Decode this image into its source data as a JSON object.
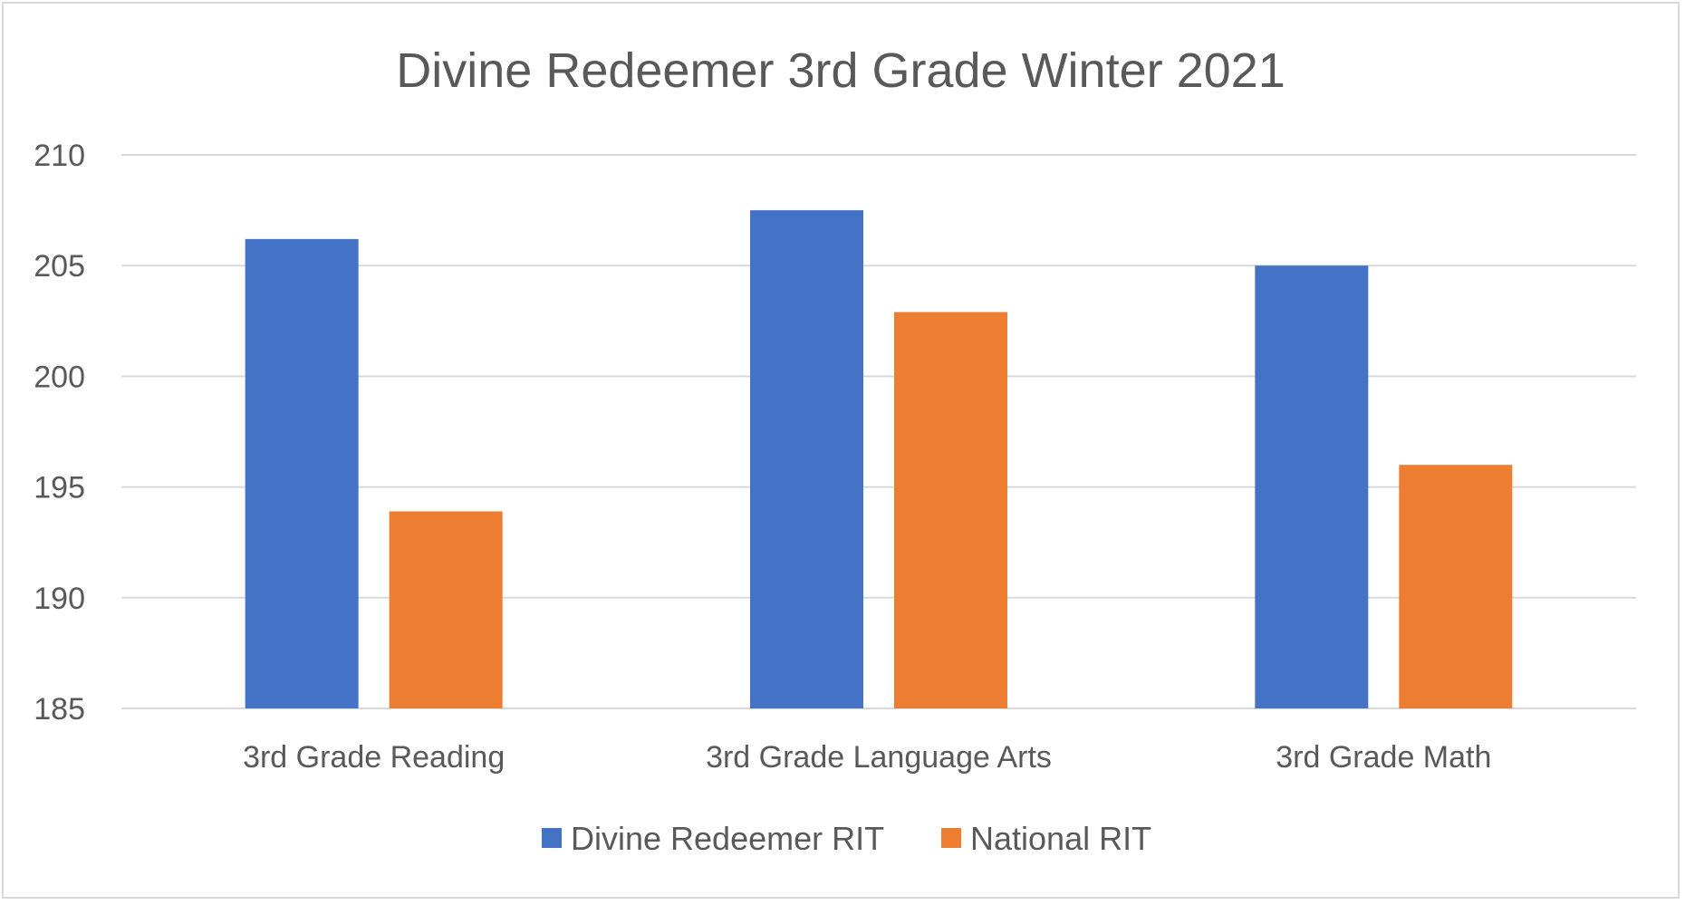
{
  "chart_data": {
    "type": "bar",
    "title": "Divine Redeemer 3rd Grade Winter 2021",
    "xlabel": "",
    "ylabel": "",
    "categories": [
      "3rd Grade Reading",
      "3rd Grade Language Arts",
      "3rd Grade Math"
    ],
    "series": [
      {
        "name": "Divine Redeemer RIT",
        "values": [
          206.2,
          207.5,
          205.0
        ],
        "color": "#4472C4"
      },
      {
        "name": "National RIT",
        "values": [
          193.9,
          202.9,
          196.0
        ],
        "color": "#ED7D31"
      }
    ],
    "ylim": [
      185,
      210
    ],
    "yticks": [
      "185",
      "190",
      "195",
      "200",
      "205",
      "210"
    ],
    "grid": true,
    "legend_position": "bottom"
  }
}
